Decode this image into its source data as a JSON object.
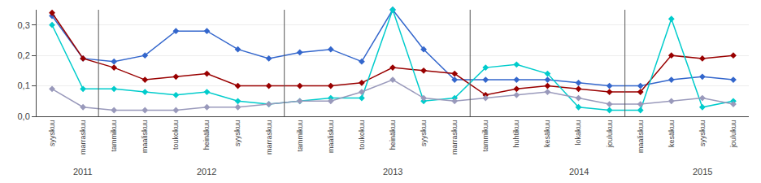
{
  "chart_data": {
    "type": "line",
    "categories": [
      "syyskuu",
      "marraskuu",
      "tammikuu",
      "maaliskuu",
      "toukokuu",
      "heinäkuu",
      "syyskuu",
      "marraskuu",
      "tammikuu",
      "maaliskuu",
      "toukokuu",
      "heinäkuu",
      "syyskuu",
      "marraskuu",
      "tammikuu",
      "huhtikuu",
      "kesäkuu",
      "lokakuu",
      "joulukuu",
      "maaliskuu",
      "kesäkuu",
      "syyskuu",
      "joulukuu"
    ],
    "series": [
      {
        "color": "#3366CC",
        "values": [
          0.33,
          0.19,
          0.18,
          0.2,
          0.28,
          0.28,
          0.22,
          0.19,
          0.21,
          0.22,
          0.18,
          0.35,
          0.22,
          0.12,
          0.12,
          0.12,
          0.12,
          0.11,
          0.1,
          0.1,
          0.12,
          0.13,
          0.12
        ]
      },
      {
        "color": "#990000",
        "values": [
          0.34,
          0.19,
          0.16,
          0.12,
          0.13,
          0.14,
          0.1,
          0.1,
          0.1,
          0.1,
          0.11,
          0.16,
          0.15,
          0.14,
          0.07,
          0.09,
          0.1,
          0.09,
          0.08,
          0.08,
          0.2,
          0.19,
          0.2
        ]
      },
      {
        "color": "#00CCCC",
        "values": [
          0.3,
          0.09,
          0.09,
          0.08,
          0.07,
          0.08,
          0.05,
          0.04,
          0.05,
          0.06,
          0.06,
          0.35,
          0.05,
          0.06,
          0.16,
          0.17,
          0.14,
          0.03,
          0.02,
          0.02,
          0.32,
          0.03,
          0.05
        ]
      },
      {
        "color": "#9999BB",
        "values": [
          0.09,
          0.03,
          0.02,
          0.02,
          0.02,
          0.03,
          0.03,
          0.04,
          0.05,
          0.05,
          0.08,
          0.12,
          0.06,
          0.05,
          0.06,
          0.07,
          0.08,
          0.06,
          0.04,
          0.04,
          0.05,
          0.06,
          0.04
        ]
      }
    ],
    "marker": "diamond",
    "ylim": [
      0.0,
      0.35
    ],
    "yticks": [
      {
        "value": 0.0,
        "label": "0,0"
      },
      {
        "value": 0.1,
        "label": "0,1"
      },
      {
        "value": 0.2,
        "label": "0,2"
      },
      {
        "value": 0.3,
        "label": "0,3"
      }
    ],
    "grid": true,
    "annotations": [
      {
        "x": 1,
        "text": "2011"
      },
      {
        "x": 5,
        "text": "2012"
      },
      {
        "x": 11,
        "text": "2013"
      },
      {
        "x": 17,
        "text": "2014"
      },
      {
        "x": 21,
        "text": "2015"
      }
    ],
    "year_dividers": [
      2,
      8,
      14,
      19
    ]
  }
}
